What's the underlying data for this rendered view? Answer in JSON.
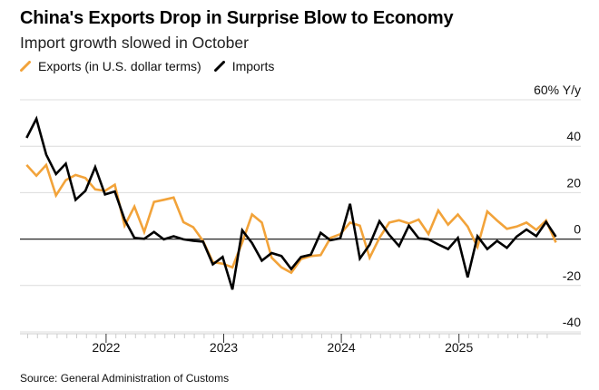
{
  "title": "China's Exports Drop in Surprise Blow to Economy",
  "subtitle": "Import growth slowed in October",
  "source": "Source: General Administration of Customs",
  "legend": [
    {
      "label": "Exports (in U.S. dollar terms)",
      "color": "#F2A33A"
    },
    {
      "label": "Imports",
      "color": "#000000"
    }
  ],
  "chart_data": {
    "type": "line",
    "title": "China's Exports Drop in Surprise Blow to Economy",
    "subtitle": "Import growth slowed in October",
    "xlabel": "",
    "ylabel": "% Y/y",
    "ylim": [
      -40,
      60
    ],
    "yticks": [
      -40,
      -20,
      0,
      20,
      40,
      60
    ],
    "ytick_labels": [
      "-40",
      "-20",
      "0",
      "20",
      "40",
      "60% Y/y"
    ],
    "xtick_labels": [
      "2022",
      "2023",
      "2024",
      "2025"
    ],
    "grid": true,
    "legend_position": "top-left",
    "x_start": "2021-04",
    "x_end": "2025-10",
    "frequency": "monthly",
    "series": [
      {
        "name": "Exports (in U.S. dollar terms)",
        "color": "#F2A33A",
        "values": [
          31.9,
          27.3,
          31.9,
          18.8,
          25.4,
          27.6,
          26.3,
          21.4,
          20.8,
          23.4,
          5.8,
          14.0,
          3.1,
          16.0,
          16.9,
          17.9,
          7.3,
          5.1,
          -0.8,
          -9.9,
          -10.6,
          -12.2,
          -1.5,
          10.6,
          7.1,
          -8.0,
          -12.2,
          -14.5,
          -8.6,
          -7.3,
          -6.9,
          0.5,
          2.1,
          7.1,
          5.8,
          -8.0,
          0.5,
          7.1,
          8.1,
          6.7,
          8.4,
          2.2,
          12.3,
          6.2,
          10.6,
          5.4,
          -3.4,
          11.9,
          8.0,
          4.4,
          5.4,
          7.1,
          4.0,
          8.0,
          -1.5
        ]
      },
      {
        "name": "Imports",
        "color": "#000000",
        "values": [
          43.6,
          51.8,
          36.4,
          28.0,
          32.5,
          16.9,
          20.8,
          31.0,
          19.2,
          20.5,
          8.4,
          0.5,
          0.1,
          3.1,
          -0.1,
          1.2,
          -0.1,
          -0.7,
          -1.1,
          -10.9,
          -7.7,
          -21.7,
          3.8,
          -1.7,
          -9.3,
          -6.0,
          -7.3,
          -12.9,
          -7.7,
          -6.7,
          2.7,
          -0.5,
          0.3,
          15.2,
          -8.4,
          -2.4,
          7.7,
          1.8,
          -3.0,
          5.8,
          0.3,
          -0.1,
          -2.3,
          -4.3,
          0.5,
          -16.5,
          1.2,
          -4.3,
          -0.8,
          -3.8,
          1.1,
          4.1,
          1.3,
          7.4,
          1.0
        ]
      }
    ]
  }
}
